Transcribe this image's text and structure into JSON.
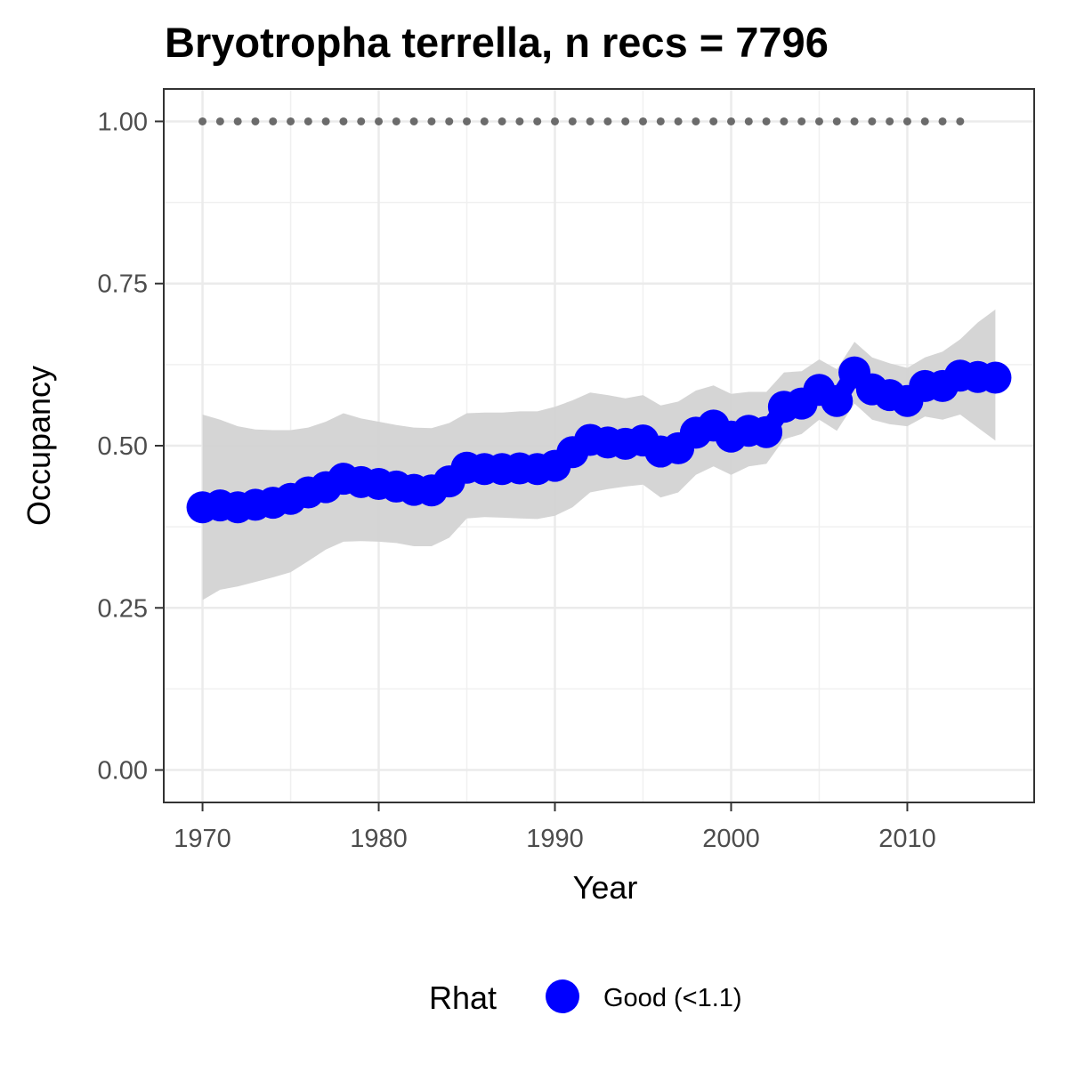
{
  "chart_data": {
    "type": "line",
    "title": "Bryotropha terrella, n recs = 7796",
    "xlabel": "Year",
    "ylabel": "Occupancy",
    "xlim": [
      1967.8,
      2017.2
    ],
    "ylim": [
      -0.05,
      1.05
    ],
    "x_ticks": [
      1970,
      1980,
      1990,
      2000,
      2010
    ],
    "x_tick_labels": [
      "1970",
      "1980",
      "1990",
      "2000",
      "2010"
    ],
    "y_ticks": [
      0,
      0.25,
      0.5,
      0.75,
      1
    ],
    "y_tick_labels": [
      "0.00",
      "0.25",
      "0.50",
      "0.75",
      "1.00"
    ],
    "grid": true,
    "x": [
      1970,
      1971,
      1972,
      1973,
      1974,
      1975,
      1976,
      1977,
      1978,
      1979,
      1980,
      1981,
      1982,
      1983,
      1984,
      1985,
      1986,
      1987,
      1988,
      1989,
      1990,
      1991,
      1992,
      1993,
      1994,
      1995,
      1996,
      1997,
      1998,
      1999,
      2000,
      2001,
      2002,
      2003,
      2004,
      2005,
      2006,
      2007,
      2008,
      2009,
      2010,
      2011,
      2012,
      2013,
      2014,
      2015
    ],
    "series": [
      {
        "name": "Good (<1.1)",
        "color": "#0000ff",
        "y": [
          0.405,
          0.408,
          0.405,
          0.409,
          0.412,
          0.418,
          0.428,
          0.436,
          0.449,
          0.444,
          0.441,
          0.437,
          0.432,
          0.431,
          0.445,
          0.466,
          0.464,
          0.464,
          0.465,
          0.464,
          0.469,
          0.49,
          0.509,
          0.505,
          0.503,
          0.508,
          0.491,
          0.496,
          0.52,
          0.531,
          0.514,
          0.523,
          0.521,
          0.56,
          0.565,
          0.586,
          0.569,
          0.613,
          0.587,
          0.578,
          0.569,
          0.592,
          0.592,
          0.608,
          0.606,
          0.605
        ],
        "lower": [
          0.262,
          0.278,
          0.283,
          0.29,
          0.297,
          0.305,
          0.322,
          0.34,
          0.352,
          0.353,
          0.352,
          0.35,
          0.345,
          0.345,
          0.358,
          0.388,
          0.39,
          0.389,
          0.388,
          0.387,
          0.392,
          0.405,
          0.428,
          0.433,
          0.437,
          0.44,
          0.42,
          0.428,
          0.455,
          0.468,
          0.455,
          0.468,
          0.472,
          0.51,
          0.518,
          0.54,
          0.523,
          0.565,
          0.54,
          0.533,
          0.53,
          0.545,
          0.54,
          0.548,
          0.528,
          0.508
        ],
        "upper": [
          0.548,
          0.54,
          0.53,
          0.525,
          0.524,
          0.524,
          0.528,
          0.537,
          0.55,
          0.542,
          0.537,
          0.532,
          0.528,
          0.527,
          0.535,
          0.55,
          0.551,
          0.551,
          0.553,
          0.553,
          0.56,
          0.57,
          0.582,
          0.578,
          0.573,
          0.578,
          0.562,
          0.568,
          0.585,
          0.593,
          0.58,
          0.583,
          0.583,
          0.613,
          0.615,
          0.633,
          0.618,
          0.66,
          0.636,
          0.627,
          0.62,
          0.636,
          0.645,
          0.664,
          0.69,
          0.71
        ]
      }
    ],
    "reference_line": {
      "y": 1.0,
      "x_from": 1970,
      "x_to": 2013,
      "style": "dotted",
      "color": "#6b6b6b"
    },
    "ribbon_color": "#d3d3d3",
    "legend": {
      "title": "Rhat",
      "placement": "bottom",
      "items": [
        {
          "label": "Good (<1.1)",
          "color": "#0000ff"
        }
      ]
    }
  }
}
